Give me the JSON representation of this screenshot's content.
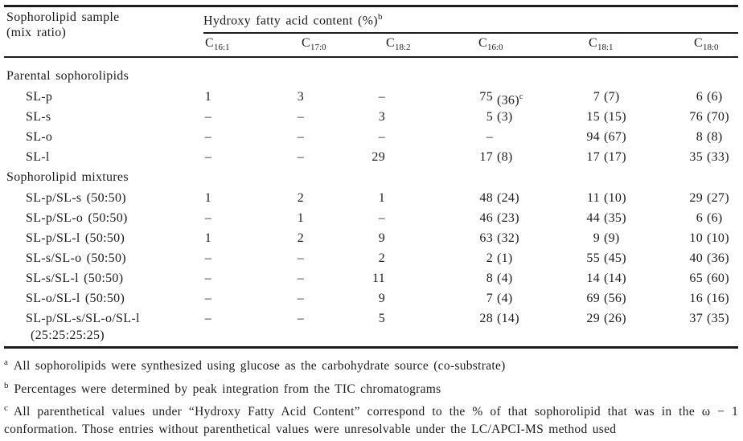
{
  "colors": {
    "text_color": "#1c1c1c",
    "background_color": "#ffffff"
  },
  "table": {
    "sample_header": [
      "Sophorolipid sample",
      "(mix ratio)"
    ],
    "group_header": {
      "text": "Hydroxy fatty acid content (%)",
      "sup": "b"
    },
    "columns": [
      {
        "symbol": "C",
        "sub": "16:1"
      },
      {
        "symbol": "C",
        "sub": "17:0"
      },
      {
        "symbol": "C",
        "sub": "18:2"
      },
      {
        "symbol": "C",
        "sub": "16:0"
      },
      {
        "symbol": "C",
        "sub": "18:1"
      },
      {
        "symbol": "C",
        "sub": "18:0"
      }
    ],
    "sections": [
      {
        "title": "Parental sophorolipids",
        "rows": [
          {
            "label": "SL-p",
            "cells": [
              {
                "num": "1"
              },
              {
                "num": "3"
              },
              {
                "num": "–"
              },
              {
                "num": "75",
                "paren": "(36)",
                "sup": "c"
              },
              {
                "num": "7",
                "paren": "(7)"
              },
              {
                "num": "6",
                "paren": "(6)"
              }
            ]
          },
          {
            "label": "SL-s",
            "cells": [
              {
                "num": "–"
              },
              {
                "num": "–"
              },
              {
                "num": "3"
              },
              {
                "num": "5",
                "paren": "(3)"
              },
              {
                "num": "15",
                "paren": "(15)"
              },
              {
                "num": "76",
                "paren": "(70)"
              }
            ]
          },
          {
            "label": "SL-o",
            "cells": [
              {
                "num": "–"
              },
              {
                "num": "–"
              },
              {
                "num": "–"
              },
              {
                "num": "–"
              },
              {
                "num": "94",
                "paren": "(67)"
              },
              {
                "num": "8",
                "paren": "(8)"
              }
            ]
          },
          {
            "label": "SL-l",
            "cells": [
              {
                "num": "–"
              },
              {
                "num": "–"
              },
              {
                "num": "29"
              },
              {
                "num": "17",
                "paren": "(8)"
              },
              {
                "num": "17",
                "paren": "(17)"
              },
              {
                "num": "35",
                "paren": "(33)"
              }
            ]
          }
        ]
      },
      {
        "title": "Sophorolipid mixtures",
        "rows": [
          {
            "label": "SL-p/SL-s (50:50)",
            "cells": [
              {
                "num": "1"
              },
              {
                "num": "2"
              },
              {
                "num": "1"
              },
              {
                "num": "48",
                "paren": "(24)"
              },
              {
                "num": "11",
                "paren": "(10)"
              },
              {
                "num": "29",
                "paren": "(27)"
              }
            ]
          },
          {
            "label": "SL-p/SL-o (50:50)",
            "cells": [
              {
                "num": "–"
              },
              {
                "num": "1"
              },
              {
                "num": "–"
              },
              {
                "num": "46",
                "paren": "(23)"
              },
              {
                "num": "44",
                "paren": "(35)"
              },
              {
                "num": "6",
                "paren": "(6)"
              }
            ]
          },
          {
            "label": "SL-p/SL-l (50:50)",
            "cells": [
              {
                "num": "1"
              },
              {
                "num": "2"
              },
              {
                "num": "9"
              },
              {
                "num": "63",
                "paren": "(32)"
              },
              {
                "num": "9",
                "paren": "(9)"
              },
              {
                "num": "10",
                "paren": "(10)"
              }
            ]
          },
          {
            "label": "SL-s/SL-o (50:50)",
            "cells": [
              {
                "num": "–"
              },
              {
                "num": "–"
              },
              {
                "num": "2"
              },
              {
                "num": "2",
                "paren": "(1)"
              },
              {
                "num": "55",
                "paren": "(45)"
              },
              {
                "num": "40",
                "paren": "(36)"
              }
            ]
          },
          {
            "label": "SL-s/SL-l (50:50)",
            "cells": [
              {
                "num": "–"
              },
              {
                "num": "–"
              },
              {
                "num": "11"
              },
              {
                "num": "8",
                "paren": "(4)"
              },
              {
                "num": "14",
                "paren": "(14)"
              },
              {
                "num": "65",
                "paren": "(60)"
              }
            ]
          },
          {
            "label": "SL-o/SL-l (50:50)",
            "cells": [
              {
                "num": "–"
              },
              {
                "num": "–"
              },
              {
                "num": "9"
              },
              {
                "num": "7",
                "paren": "(4)"
              },
              {
                "num": "69",
                "paren": "(56)"
              },
              {
                "num": "16",
                "paren": "(16)"
              }
            ]
          },
          {
            "label": "SL-p/SL-s/SL-o/SL-l",
            "label2": "(25:25:25:25)",
            "cells": [
              {
                "num": "–"
              },
              {
                "num": "–"
              },
              {
                "num": "5"
              },
              {
                "num": "28",
                "paren": "(14)"
              },
              {
                "num": "29",
                "paren": "(26)"
              },
              {
                "num": "37",
                "paren": "(35)"
              }
            ]
          }
        ]
      }
    ],
    "footnotes": [
      {
        "sup": "a",
        "text": "All sophorolipids were synthesized using glucose as the carbohydrate source (co-substrate)"
      },
      {
        "sup": "b",
        "text": "Percentages were determined by peak integration from the TIC chromatograms"
      },
      {
        "sup": "c",
        "text": "All parenthetical values under “Hydroxy Fatty Acid Content” correspond to the % of that sophorolipid that was in the ω − 1 conformation. Those entries without parenthetical values were unresolvable under the LC/APCI-MS method used"
      }
    ]
  }
}
